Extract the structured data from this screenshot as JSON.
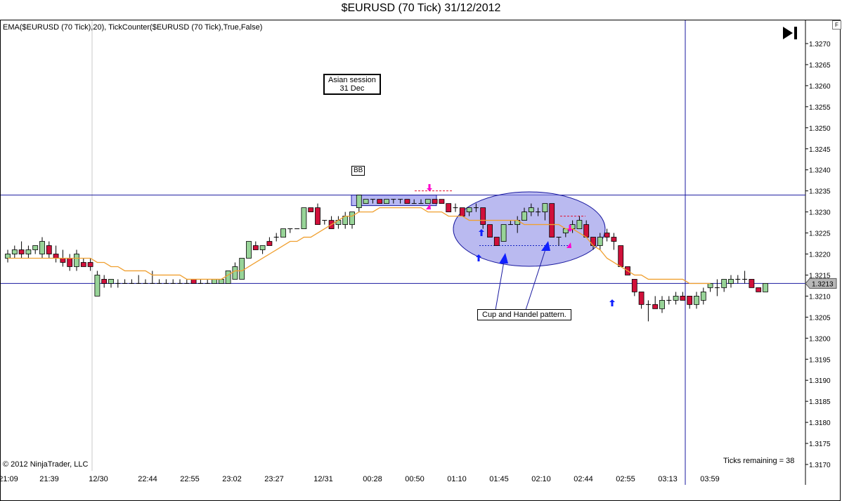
{
  "window": {
    "title": "$EURUSD (70 Tick)  31/12/2012"
  },
  "indicator_label": "EMA($EURUSD (70 Tick),20), TickCounter($EURUSD (70 Tick),True,False)",
  "copyright": "© 2012 NinjaTrader, LLC",
  "ticks_remaining": "Ticks remaining = 38",
  "axis_tab": "F",
  "annotations": {
    "asian_session_line1": "Asian session",
    "asian_session_line2": "31 Dec",
    "bb": "BB",
    "cup_handle": "Cup and Handel pattern."
  },
  "colors": {
    "up_candle": "#98d498",
    "down_candle": "#d0103a",
    "ema": "#f0a030",
    "horizontal_lines": "#1a1aa0",
    "marker_pink": "#ff00cc",
    "marker_blue": "#1020ff",
    "ellipse_fill": "#8c8ce6"
  },
  "icons": {
    "navigation": "play-end-icon"
  },
  "chart_data": {
    "type": "candlestick",
    "title": "$EURUSD (70 Tick)  31/12/2012",
    "ylim": [
      1.3165,
      1.3275
    ],
    "y_ticks": [
      "1.3270",
      "1.3265",
      "1.3260",
      "1.3255",
      "1.3250",
      "1.3245",
      "1.3240",
      "1.3235",
      "1.3230",
      "1.3225",
      "1.3220",
      "1.3215",
      "1.3210",
      "1.3205",
      "1.3200",
      "1.3195",
      "1.3190",
      "1.3185",
      "1.3180",
      "1.3175",
      "1.3170"
    ],
    "x_ticks": [
      "21:09",
      "21:39",
      "12/30",
      "22:44",
      "22:55",
      "23:02",
      "23:27",
      "12/31",
      "00:28",
      "00:50",
      "01:10",
      "01:45",
      "02:10",
      "02:44",
      "02:55",
      "03:13",
      "03:59"
    ],
    "last_price_label": "1.3213",
    "grid": false,
    "series": [
      {
        "name": "EMA($EURUSD (70 Tick),20)",
        "type": "line",
        "values": [
          1.3219,
          1.3219,
          1.3219,
          1.3219,
          1.3219,
          1.3219,
          1.3219,
          1.3219,
          1.3219,
          1.3219,
          1.3219,
          1.3219,
          1.3219,
          1.3218,
          1.3218,
          1.3217,
          1.3217,
          1.3216,
          1.3216,
          1.3216,
          1.3216,
          1.3215,
          1.3215,
          1.3215,
          1.3215,
          1.3215,
          1.3214,
          1.3214,
          1.3214,
          1.3214,
          1.3214,
          1.3214,
          1.3215,
          1.3216,
          1.3216,
          1.3217,
          1.3218,
          1.3219,
          1.322,
          1.3221,
          1.3222,
          1.3223,
          1.3223,
          1.3224,
          1.3224,
          1.3225,
          1.3226,
          1.3227,
          1.3228,
          1.3229,
          1.3229,
          1.323,
          1.323,
          1.323,
          1.3231,
          1.3231,
          1.3231,
          1.3231,
          1.3231,
          1.3231,
          1.3231,
          1.323,
          1.323,
          1.323,
          1.3229,
          1.3229,
          1.3229,
          1.3228,
          1.3228,
          1.3228,
          1.3228,
          1.3228,
          1.3228,
          1.3228,
          1.3228,
          1.3227,
          1.3227,
          1.3227,
          1.3227,
          1.3227,
          1.3227,
          1.3226,
          1.3226,
          1.3225,
          1.3224,
          1.3222,
          1.3221,
          1.3219,
          1.3218,
          1.3217,
          1.3216,
          1.3215,
          1.3215,
          1.3214,
          1.3214,
          1.3214,
          1.3214,
          1.3214,
          1.3214,
          1.3213,
          1.3213,
          1.3213,
          1.3213
        ]
      }
    ],
    "candles": [
      {
        "o": 1.3219,
        "h": 1.3221,
        "l": 1.3218,
        "c": 1.322
      },
      {
        "o": 1.322,
        "h": 1.3222,
        "l": 1.3219,
        "c": 1.3221
      },
      {
        "o": 1.3221,
        "h": 1.3223,
        "l": 1.3219,
        "c": 1.322
      },
      {
        "o": 1.322,
        "h": 1.3222,
        "l": 1.3219,
        "c": 1.3221
      },
      {
        "o": 1.3221,
        "h": 1.3222,
        "l": 1.322,
        "c": 1.3222
      },
      {
        "o": 1.322,
        "h": 1.3224,
        "l": 1.3219,
        "c": 1.3223
      },
      {
        "o": 1.3222,
        "h": 1.3223,
        "l": 1.3219,
        "c": 1.322
      },
      {
        "o": 1.322,
        "h": 1.3222,
        "l": 1.3218,
        "c": 1.3219
      },
      {
        "o": 1.3219,
        "h": 1.3221,
        "l": 1.3217,
        "c": 1.3218
      },
      {
        "o": 1.3219,
        "h": 1.322,
        "l": 1.3216,
        "c": 1.3217
      },
      {
        "o": 1.3217,
        "h": 1.3221,
        "l": 1.3216,
        "c": 1.322
      },
      {
        "o": 1.3218,
        "h": 1.3219,
        "l": 1.3217,
        "c": 1.3217
      },
      {
        "o": 1.3218,
        "h": 1.3219,
        "l": 1.3216,
        "c": 1.3217
      },
      {
        "o": 1.321,
        "h": 1.3216,
        "l": 1.321,
        "c": 1.3215
      },
      {
        "o": 1.3214,
        "h": 1.3215,
        "l": 1.3212,
        "c": 1.3213
      },
      {
        "o": 1.3213,
        "h": 1.3214,
        "l": 1.3212,
        "c": 1.3214
      },
      {
        "o": 1.3213,
        "h": 1.3214,
        "l": 1.3212,
        "c": 1.3213
      },
      {
        "o": 1.3213,
        "h": 1.3214,
        "l": 1.3213,
        "c": 1.3213
      },
      {
        "o": 1.3213,
        "h": 1.3214,
        "l": 1.3213,
        "c": 1.3213
      },
      {
        "o": 1.3213,
        "h": 1.3215,
        "l": 1.3213,
        "c": 1.3213
      },
      {
        "o": 1.3213,
        "h": 1.3214,
        "l": 1.3213,
        "c": 1.3213
      },
      {
        "o": 1.3213,
        "h": 1.3216,
        "l": 1.3213,
        "c": 1.3213
      },
      {
        "o": 1.3213,
        "h": 1.3214,
        "l": 1.3213,
        "c": 1.3213
      },
      {
        "o": 1.3213,
        "h": 1.3214,
        "l": 1.3213,
        "c": 1.3213
      },
      {
        "o": 1.3213,
        "h": 1.3214,
        "l": 1.3213,
        "c": 1.3213
      },
      {
        "o": 1.3213,
        "h": 1.3214,
        "l": 1.3213,
        "c": 1.3213
      },
      {
        "o": 1.3213,
        "h": 1.3214,
        "l": 1.3213,
        "c": 1.3213
      },
      {
        "o": 1.3214,
        "h": 1.3214,
        "l": 1.3213,
        "c": 1.3213
      },
      {
        "o": 1.3213,
        "h": 1.3214,
        "l": 1.3213,
        "c": 1.3213
      },
      {
        "o": 1.3213,
        "h": 1.3214,
        "l": 1.3213,
        "c": 1.3213
      },
      {
        "o": 1.3213,
        "h": 1.3214,
        "l": 1.3213,
        "c": 1.3214
      },
      {
        "o": 1.3213,
        "h": 1.3214,
        "l": 1.3213,
        "c": 1.3214
      },
      {
        "o": 1.3213,
        "h": 1.3216,
        "l": 1.3213,
        "c": 1.3216
      },
      {
        "o": 1.3214,
        "h": 1.3218,
        "l": 1.3214,
        "c": 1.3217
      },
      {
        "o": 1.3214,
        "h": 1.3219,
        "l": 1.3214,
        "c": 1.3219
      },
      {
        "o": 1.3219,
        "h": 1.3223,
        "l": 1.3219,
        "c": 1.3223
      },
      {
        "o": 1.3222,
        "h": 1.3223,
        "l": 1.3221,
        "c": 1.3221
      },
      {
        "o": 1.3221,
        "h": 1.3222,
        "l": 1.322,
        "c": 1.3222
      },
      {
        "o": 1.3223,
        "h": 1.3224,
        "l": 1.3222,
        "c": 1.3222
      },
      {
        "o": 1.3224,
        "h": 1.3225,
        "l": 1.3223,
        "c": 1.3224
      },
      {
        "o": 1.3224,
        "h": 1.3226,
        "l": 1.3224,
        "c": 1.3226
      },
      {
        "o": 1.3226,
        "h": 1.3226,
        "l": 1.3225,
        "c": 1.3226
      },
      {
        "o": 1.3226,
        "h": 1.3226,
        "l": 1.3226,
        "c": 1.3226
      },
      {
        "o": 1.3226,
        "h": 1.3231,
        "l": 1.3226,
        "c": 1.3231
      },
      {
        "o": 1.3231,
        "h": 1.3231,
        "l": 1.323,
        "c": 1.323
      },
      {
        "o": 1.3231,
        "h": 1.3232,
        "l": 1.3227,
        "c": 1.3227
      },
      {
        "o": 1.3228,
        "h": 1.3228,
        "l": 1.3227,
        "c": 1.3228
      },
      {
        "o": 1.3228,
        "h": 1.3229,
        "l": 1.3226,
        "c": 1.3226
      },
      {
        "o": 1.3227,
        "h": 1.3229,
        "l": 1.3226,
        "c": 1.3228
      },
      {
        "o": 1.3227,
        "h": 1.323,
        "l": 1.3226,
        "c": 1.3229
      },
      {
        "o": 1.3227,
        "h": 1.323,
        "l": 1.3226,
        "c": 1.323
      },
      {
        "o": 1.3231,
        "h": 1.3234,
        "l": 1.323,
        "c": 1.3234
      },
      {
        "o": 1.3232,
        "h": 1.3233,
        "l": 1.3232,
        "c": 1.3233
      },
      {
        "o": 1.3233,
        "h": 1.3233,
        "l": 1.3232,
        "c": 1.3233
      },
      {
        "o": 1.3233,
        "h": 1.3233,
        "l": 1.3232,
        "c": 1.3232
      },
      {
        "o": 1.3232,
        "h": 1.3233,
        "l": 1.3232,
        "c": 1.3233
      },
      {
        "o": 1.3233,
        "h": 1.3233,
        "l": 1.3232,
        "c": 1.3233
      },
      {
        "o": 1.3233,
        "h": 1.3233,
        "l": 1.3232,
        "c": 1.3233
      },
      {
        "o": 1.3233,
        "h": 1.3233,
        "l": 1.3232,
        "c": 1.3232
      },
      {
        "o": 1.3232,
        "h": 1.3233,
        "l": 1.3232,
        "c": 1.3232
      },
      {
        "o": 1.3232,
        "h": 1.3233,
        "l": 1.3232,
        "c": 1.3232
      },
      {
        "o": 1.3232,
        "h": 1.3233,
        "l": 1.3232,
        "c": 1.3233
      },
      {
        "o": 1.3233,
        "h": 1.3233,
        "l": 1.3232,
        "c": 1.3232
      },
      {
        "o": 1.3233,
        "h": 1.3233,
        "l": 1.3232,
        "c": 1.3232
      },
      {
        "o": 1.3232,
        "h": 1.3232,
        "l": 1.323,
        "c": 1.323
      },
      {
        "o": 1.3231,
        "h": 1.3232,
        "l": 1.323,
        "c": 1.3231
      },
      {
        "o": 1.3231,
        "h": 1.3231,
        "l": 1.3229,
        "c": 1.3229
      },
      {
        "o": 1.323,
        "h": 1.3231,
        "l": 1.3229,
        "c": 1.3231
      },
      {
        "o": 1.3231,
        "h": 1.3232,
        "l": 1.323,
        "c": 1.3231
      },
      {
        "o": 1.3231,
        "h": 1.3231,
        "l": 1.3226,
        "c": 1.3227
      },
      {
        "o": 1.3227,
        "h": 1.3227,
        "l": 1.3224,
        "c": 1.3224
      },
      {
        "o": 1.3224,
        "h": 1.3224,
        "l": 1.3222,
        "c": 1.3222
      },
      {
        "o": 1.3223,
        "h": 1.3227,
        "l": 1.3223,
        "c": 1.3227
      },
      {
        "o": 1.3227,
        "h": 1.3228,
        "l": 1.3227,
        "c": 1.3227
      },
      {
        "o": 1.3227,
        "h": 1.3229,
        "l": 1.3225,
        "c": 1.3228
      },
      {
        "o": 1.3228,
        "h": 1.3231,
        "l": 1.3228,
        "c": 1.323
      },
      {
        "o": 1.323,
        "h": 1.3232,
        "l": 1.3229,
        "c": 1.3231
      },
      {
        "o": 1.323,
        "h": 1.3231,
        "l": 1.3229,
        "c": 1.323
      },
      {
        "o": 1.323,
        "h": 1.3232,
        "l": 1.3228,
        "c": 1.3232
      },
      {
        "o": 1.3232,
        "h": 1.3232,
        "l": 1.3224,
        "c": 1.3224
      },
      {
        "o": 1.3224,
        "h": 1.3224,
        "l": 1.3222,
        "c": 1.3224
      },
      {
        "o": 1.3225,
        "h": 1.3226,
        "l": 1.3224,
        "c": 1.3226
      },
      {
        "o": 1.3226,
        "h": 1.3228,
        "l": 1.3225,
        "c": 1.3227
      },
      {
        "o": 1.3226,
        "h": 1.3229,
        "l": 1.3226,
        "c": 1.3228
      },
      {
        "o": 1.3227,
        "h": 1.3228,
        "l": 1.3224,
        "c": 1.3224
      },
      {
        "o": 1.3224,
        "h": 1.3224,
        "l": 1.3221,
        "c": 1.3222
      },
      {
        "o": 1.3222,
        "h": 1.3225,
        "l": 1.3221,
        "c": 1.3224
      },
      {
        "o": 1.3225,
        "h": 1.3226,
        "l": 1.3223,
        "c": 1.3224
      },
      {
        "o": 1.3224,
        "h": 1.3225,
        "l": 1.3221,
        "c": 1.3223
      },
      {
        "o": 1.3222,
        "h": 1.3222,
        "l": 1.3217,
        "c": 1.3217
      },
      {
        "o": 1.3217,
        "h": 1.3217,
        "l": 1.3215,
        "c": 1.3215
      },
      {
        "o": 1.3214,
        "h": 1.3214,
        "l": 1.321,
        "c": 1.3211
      },
      {
        "o": 1.3211,
        "h": 1.3211,
        "l": 1.3207,
        "c": 1.3208
      },
      {
        "o": 1.3208,
        "h": 1.3209,
        "l": 1.3204,
        "c": 1.3208
      },
      {
        "o": 1.3208,
        "h": 1.321,
        "l": 1.3207,
        "c": 1.3207
      },
      {
        "o": 1.3207,
        "h": 1.321,
        "l": 1.3206,
        "c": 1.3209
      },
      {
        "o": 1.3209,
        "h": 1.321,
        "l": 1.3208,
        "c": 1.3209
      },
      {
        "o": 1.3209,
        "h": 1.3211,
        "l": 1.3208,
        "c": 1.321
      },
      {
        "o": 1.321,
        "h": 1.3211,
        "l": 1.3209,
        "c": 1.3209
      },
      {
        "o": 1.321,
        "h": 1.321,
        "l": 1.3207,
        "c": 1.3208
      },
      {
        "o": 1.3208,
        "h": 1.3211,
        "l": 1.3207,
        "c": 1.321
      },
      {
        "o": 1.3209,
        "h": 1.3212,
        "l": 1.3208,
        "c": 1.3211
      },
      {
        "o": 1.3212,
        "h": 1.3213,
        "l": 1.3211,
        "c": 1.3213
      },
      {
        "o": 1.3212,
        "h": 1.3214,
        "l": 1.321,
        "c": 1.3212
      },
      {
        "o": 1.3212,
        "h": 1.3214,
        "l": 1.3211,
        "c": 1.3214
      },
      {
        "o": 1.3213,
        "h": 1.3215,
        "l": 1.3212,
        "c": 1.3214
      },
      {
        "o": 1.3214,
        "h": 1.3215,
        "l": 1.3213,
        "c": 1.3214
      },
      {
        "o": 1.3214,
        "h": 1.3216,
        "l": 1.3213,
        "c": 1.3214
      },
      {
        "o": 1.3214,
        "h": 1.3214,
        "l": 1.3212,
        "c": 1.3212
      },
      {
        "o": 1.3212,
        "h": 1.3212,
        "l": 1.3211,
        "c": 1.3211
      },
      {
        "o": 1.3211,
        "h": 1.3213,
        "l": 1.3211,
        "c": 1.3213
      }
    ],
    "horizontal_lines": [
      1.3234,
      1.3213
    ],
    "rectangle_zone": {
      "top": 1.3234,
      "bottom": 1.3232
    },
    "cup_handle_neckline": 1.3222,
    "handle_resistance": 1.3229,
    "pink_resistance": 1.3235
  }
}
